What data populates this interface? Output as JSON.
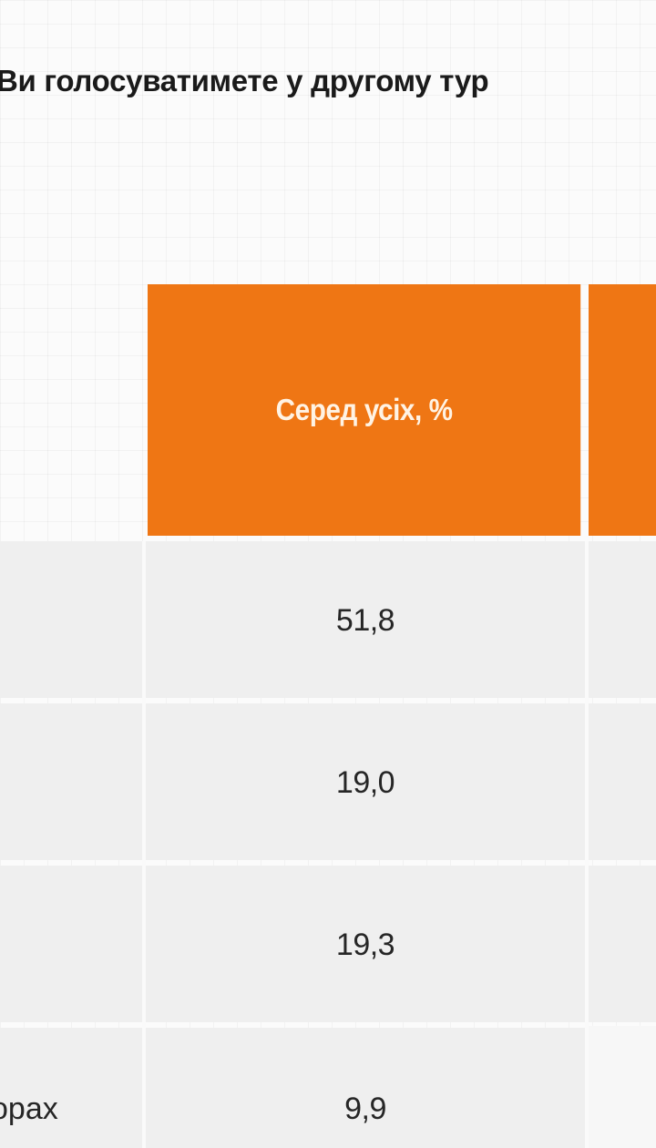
{
  "chart_data": {
    "type": "table",
    "title": "Ви голосуватимете у другому тур",
    "columns": [
      "",
      "Серед усіх, %"
    ],
    "rows": [
      {
        "label": "",
        "value": "51,8"
      },
      {
        "label": "",
        "value": "19,0"
      },
      {
        "label": "",
        "value": "19,3"
      },
      {
        "label": "орах",
        "value": "9,9"
      }
    ]
  },
  "colors": {
    "header": "#ef7614",
    "header_text": "#fff3e4",
    "row_background": "#efefef",
    "text": "#262626"
  }
}
